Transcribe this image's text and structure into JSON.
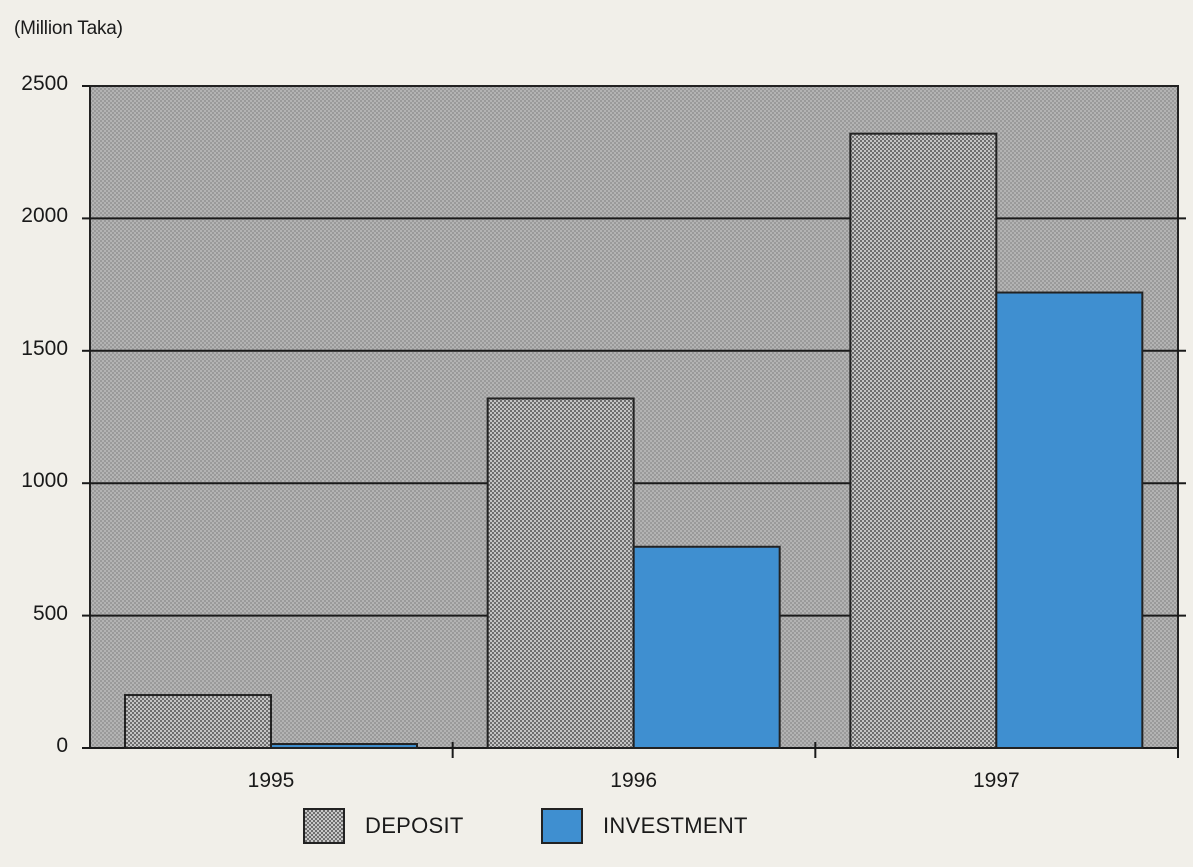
{
  "chart_data": {
    "type": "bar",
    "unit_label": "(Million Taka)",
    "categories": [
      "1995",
      "1996",
      "1997"
    ],
    "series": [
      {
        "name": "DEPOSIT",
        "values": [
          200,
          1320,
          2320
        ]
      },
      {
        "name": "INVESTMENT",
        "values": [
          15,
          760,
          1720
        ]
      }
    ],
    "yticks": [
      "2500",
      "2000",
      "1500",
      "1000",
      "500",
      "0"
    ],
    "ylim": [
      0,
      2500
    ],
    "grid": true,
    "legend_position": "bottom",
    "colors": {
      "DEPOSIT": "#9b9b9b",
      "INVESTMENT": "#3f8fd0",
      "plot_background": "#a9a9a9"
    }
  }
}
